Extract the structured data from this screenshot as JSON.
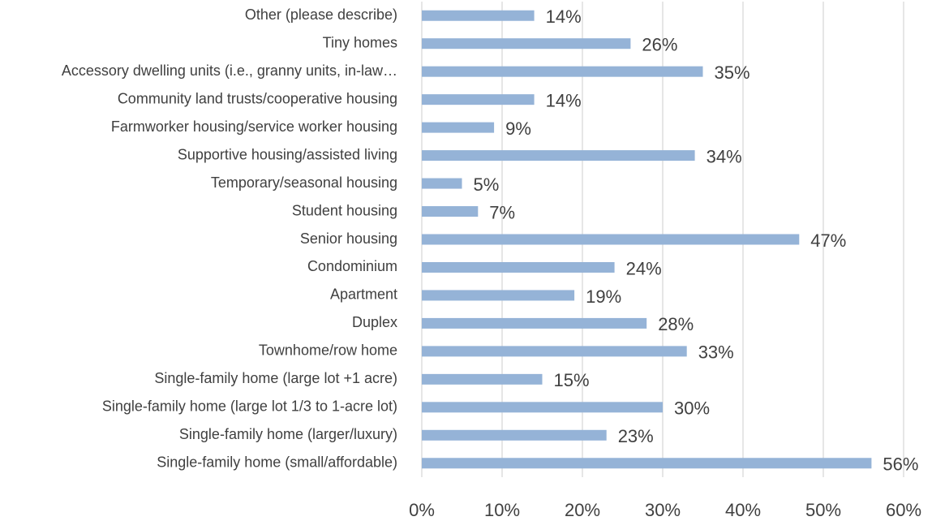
{
  "chart_data": {
    "type": "bar",
    "orientation": "horizontal",
    "categories": [
      "Other (please describe)",
      "Tiny homes",
      "Accessory dwelling units (i.e., granny units, in-law…",
      "Community land trusts/cooperative housing",
      "Farmworker housing/service worker housing",
      "Supportive housing/assisted living",
      "Temporary/seasonal housing",
      "Student housing",
      "Senior housing",
      "Condominium",
      "Apartment",
      "Duplex",
      "Townhome/row home",
      "Single-family home (large lot +1 acre)",
      "Single-family home (large lot 1/3 to 1-acre lot)",
      "Single-family home (larger/luxury)",
      "Single-family home (small/affordable)"
    ],
    "values": [
      14,
      26,
      35,
      14,
      9,
      34,
      5,
      7,
      47,
      24,
      19,
      28,
      33,
      15,
      30,
      23,
      56
    ],
    "value_labels": [
      "14%",
      "26%",
      "35%",
      "14%",
      "9%",
      "34%",
      "5%",
      "7%",
      "47%",
      "24%",
      "19%",
      "28%",
      "33%",
      "15%",
      "30%",
      "23%",
      "56%"
    ],
    "color": "#95b3d7",
    "xlim": [
      0,
      60
    ],
    "xticks": [
      {
        "value": 0,
        "label": "0%"
      },
      {
        "value": 10,
        "label": "10%"
      },
      {
        "value": 20,
        "label": "20%"
      },
      {
        "value": 30,
        "label": "30%"
      },
      {
        "value": 40,
        "label": "40%"
      },
      {
        "value": 50,
        "label": "50%"
      },
      {
        "value": 60,
        "label": "60%"
      }
    ],
    "grid": true
  }
}
